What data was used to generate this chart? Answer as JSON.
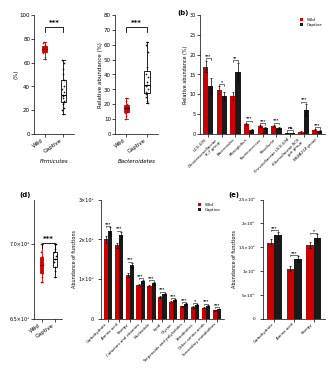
{
  "wild_color": "#cc0000",
  "captive_color": "#1a1a1a",
  "bg_color": "#ffffff",
  "panel_a_firmicutes": {
    "wild_points": [
      68,
      70,
      71,
      72,
      73,
      74,
      75,
      76,
      77,
      63,
      65,
      69,
      71.5
    ],
    "captive_points": [
      20,
      25,
      28,
      30,
      33,
      35,
      38,
      40,
      45,
      50,
      55,
      60,
      62,
      17,
      22,
      27,
      32
    ],
    "ylabel": "(%)",
    "xlabel_italic": "Firmicutes",
    "sig": "***",
    "ylim": [
      0,
      100
    ]
  },
  "panel_a_bacteroidetes": {
    "wild_points": [
      14,
      16,
      17,
      18,
      19,
      20,
      22,
      10,
      12,
      24,
      15,
      18.5
    ],
    "captive_points": [
      22,
      25,
      28,
      30,
      32,
      35,
      38,
      40,
      45,
      55,
      60,
      62,
      21,
      27,
      33
    ],
    "ylabel": "Relative abundance (%)",
    "xlabel_italic": "Bacteroidetes",
    "sig": "***",
    "ylim": [
      0,
      80
    ]
  },
  "panel_b": {
    "categories": [
      "UCG-005",
      "Christensenellaceae\nR-7 group",
      "Bacteroides",
      "Monoglobus",
      "Ruminococcus",
      "Roseburia",
      "Prevotellaceae UCG-004",
      "Rikenellaceae RC9\ngut group",
      "NK4A214 group"
    ],
    "wild": [
      17,
      11,
      9.5,
      2.5,
      2.0,
      2.0,
      0.3,
      0.5,
      1.0
    ],
    "captive": [
      12,
      9.5,
      15.5,
      1.0,
      1.5,
      1.5,
      0.2,
      6.0,
      0.8
    ],
    "wild_err": [
      1.5,
      1.0,
      1.0,
      0.3,
      0.2,
      0.3,
      0.05,
      0.2,
      0.2
    ],
    "captive_err": [
      2.0,
      1.0,
      2.5,
      0.2,
      0.3,
      0.2,
      0.05,
      1.5,
      0.2
    ],
    "sig": [
      "***",
      "*",
      "**",
      "***",
      "***",
      "***",
      "ns",
      "***",
      "***"
    ],
    "ylabel": "Relative abundance (%)",
    "ylim": [
      0,
      30
    ]
  },
  "panel_c": {
    "wild_points": [
      6750000.0,
      6800000.0,
      6820000.0,
      6850000.0,
      6870000.0,
      6900000.0,
      6920000.0,
      6950000.0,
      7000000.0,
      6780000.0
    ],
    "captive_points": [
      6780000.0,
      6820000.0,
      6850000.0,
      6880000.0,
      6900000.0,
      6920000.0,
      6950000.0,
      6970000.0,
      7000000.0
    ],
    "sig": "***",
    "ylim": [
      6500000.0,
      7300000.0
    ],
    "ytick_labels": [
      "6.5e6",
      "7.0e6"
    ]
  },
  "panel_d": {
    "categories": [
      "Carbohydrate",
      "Amino acid",
      "Energy",
      "Cofactors and vitamins",
      "Nucleotide",
      "Lipid",
      "Glycan",
      "Terpenoids and polyketides",
      "Xenobiotics",
      "Other amino acids",
      "Secondary metabolites"
    ],
    "wild": [
      2000000.0,
      1850000.0,
      1100000.0,
      850000.0,
      820000.0,
      550000.0,
      420000.0,
      320000.0,
      300000.0,
      280000.0,
      220000.0
    ],
    "captive": [
      2200000.0,
      2100000.0,
      1350000.0,
      950000.0,
      900000.0,
      620000.0,
      470000.0,
      370000.0,
      350000.0,
      330000.0,
      250000.0
    ],
    "wild_err": [
      80000.0,
      70000.0,
      50000.0,
      40000.0,
      30000.0,
      30000.0,
      20000.0,
      15000.0,
      15000.0,
      15000.0,
      10000.0
    ],
    "captive_err": [
      100000.0,
      90000.0,
      60000.0,
      40000.0,
      40000.0,
      30000.0,
      20000.0,
      20000.0,
      20000.0,
      20000.0,
      10000.0
    ],
    "sig": [
      "***",
      "***",
      "***",
      "***",
      "***",
      "***",
      "***",
      "***",
      "*",
      "***",
      "***"
    ],
    "ylabel": "Abundance of functions",
    "ylim": [
      0,
      3000000.0
    ],
    "yticks": [
      0,
      1000000.0,
      2000000.0,
      3000000.0
    ],
    "ytick_labels": [
      "0",
      "1×10⁶",
      "2×10⁶",
      "3×10⁶"
    ]
  },
  "panel_e": {
    "categories": [
      "Carbohydrate",
      "Amino acid",
      "Energy"
    ],
    "wild": [
      1600000.0,
      1050000.0,
      1550000.0
    ],
    "captive": [
      1750000.0,
      1250000.0,
      1700000.0
    ],
    "wild_err": [
      70000.0,
      50000.0,
      60000.0
    ],
    "captive_err": [
      80000.0,
      60000.0,
      70000.0
    ],
    "sig": [
      "***",
      "***",
      "*"
    ],
    "sig_captive": [
      "",
      "",
      "**"
    ],
    "ylabel": "Abundance of functions",
    "ylim": [
      0,
      2500000.0
    ],
    "yticks": [
      0,
      500000.0,
      1000000.0,
      1500000.0,
      2000000.0,
      2500000.0
    ],
    "ytick_labels": [
      "0",
      "5×10⁵",
      "1×10⁶",
      "1.5×10⁶",
      "2×10⁶",
      "2.5×10⁶"
    ]
  }
}
